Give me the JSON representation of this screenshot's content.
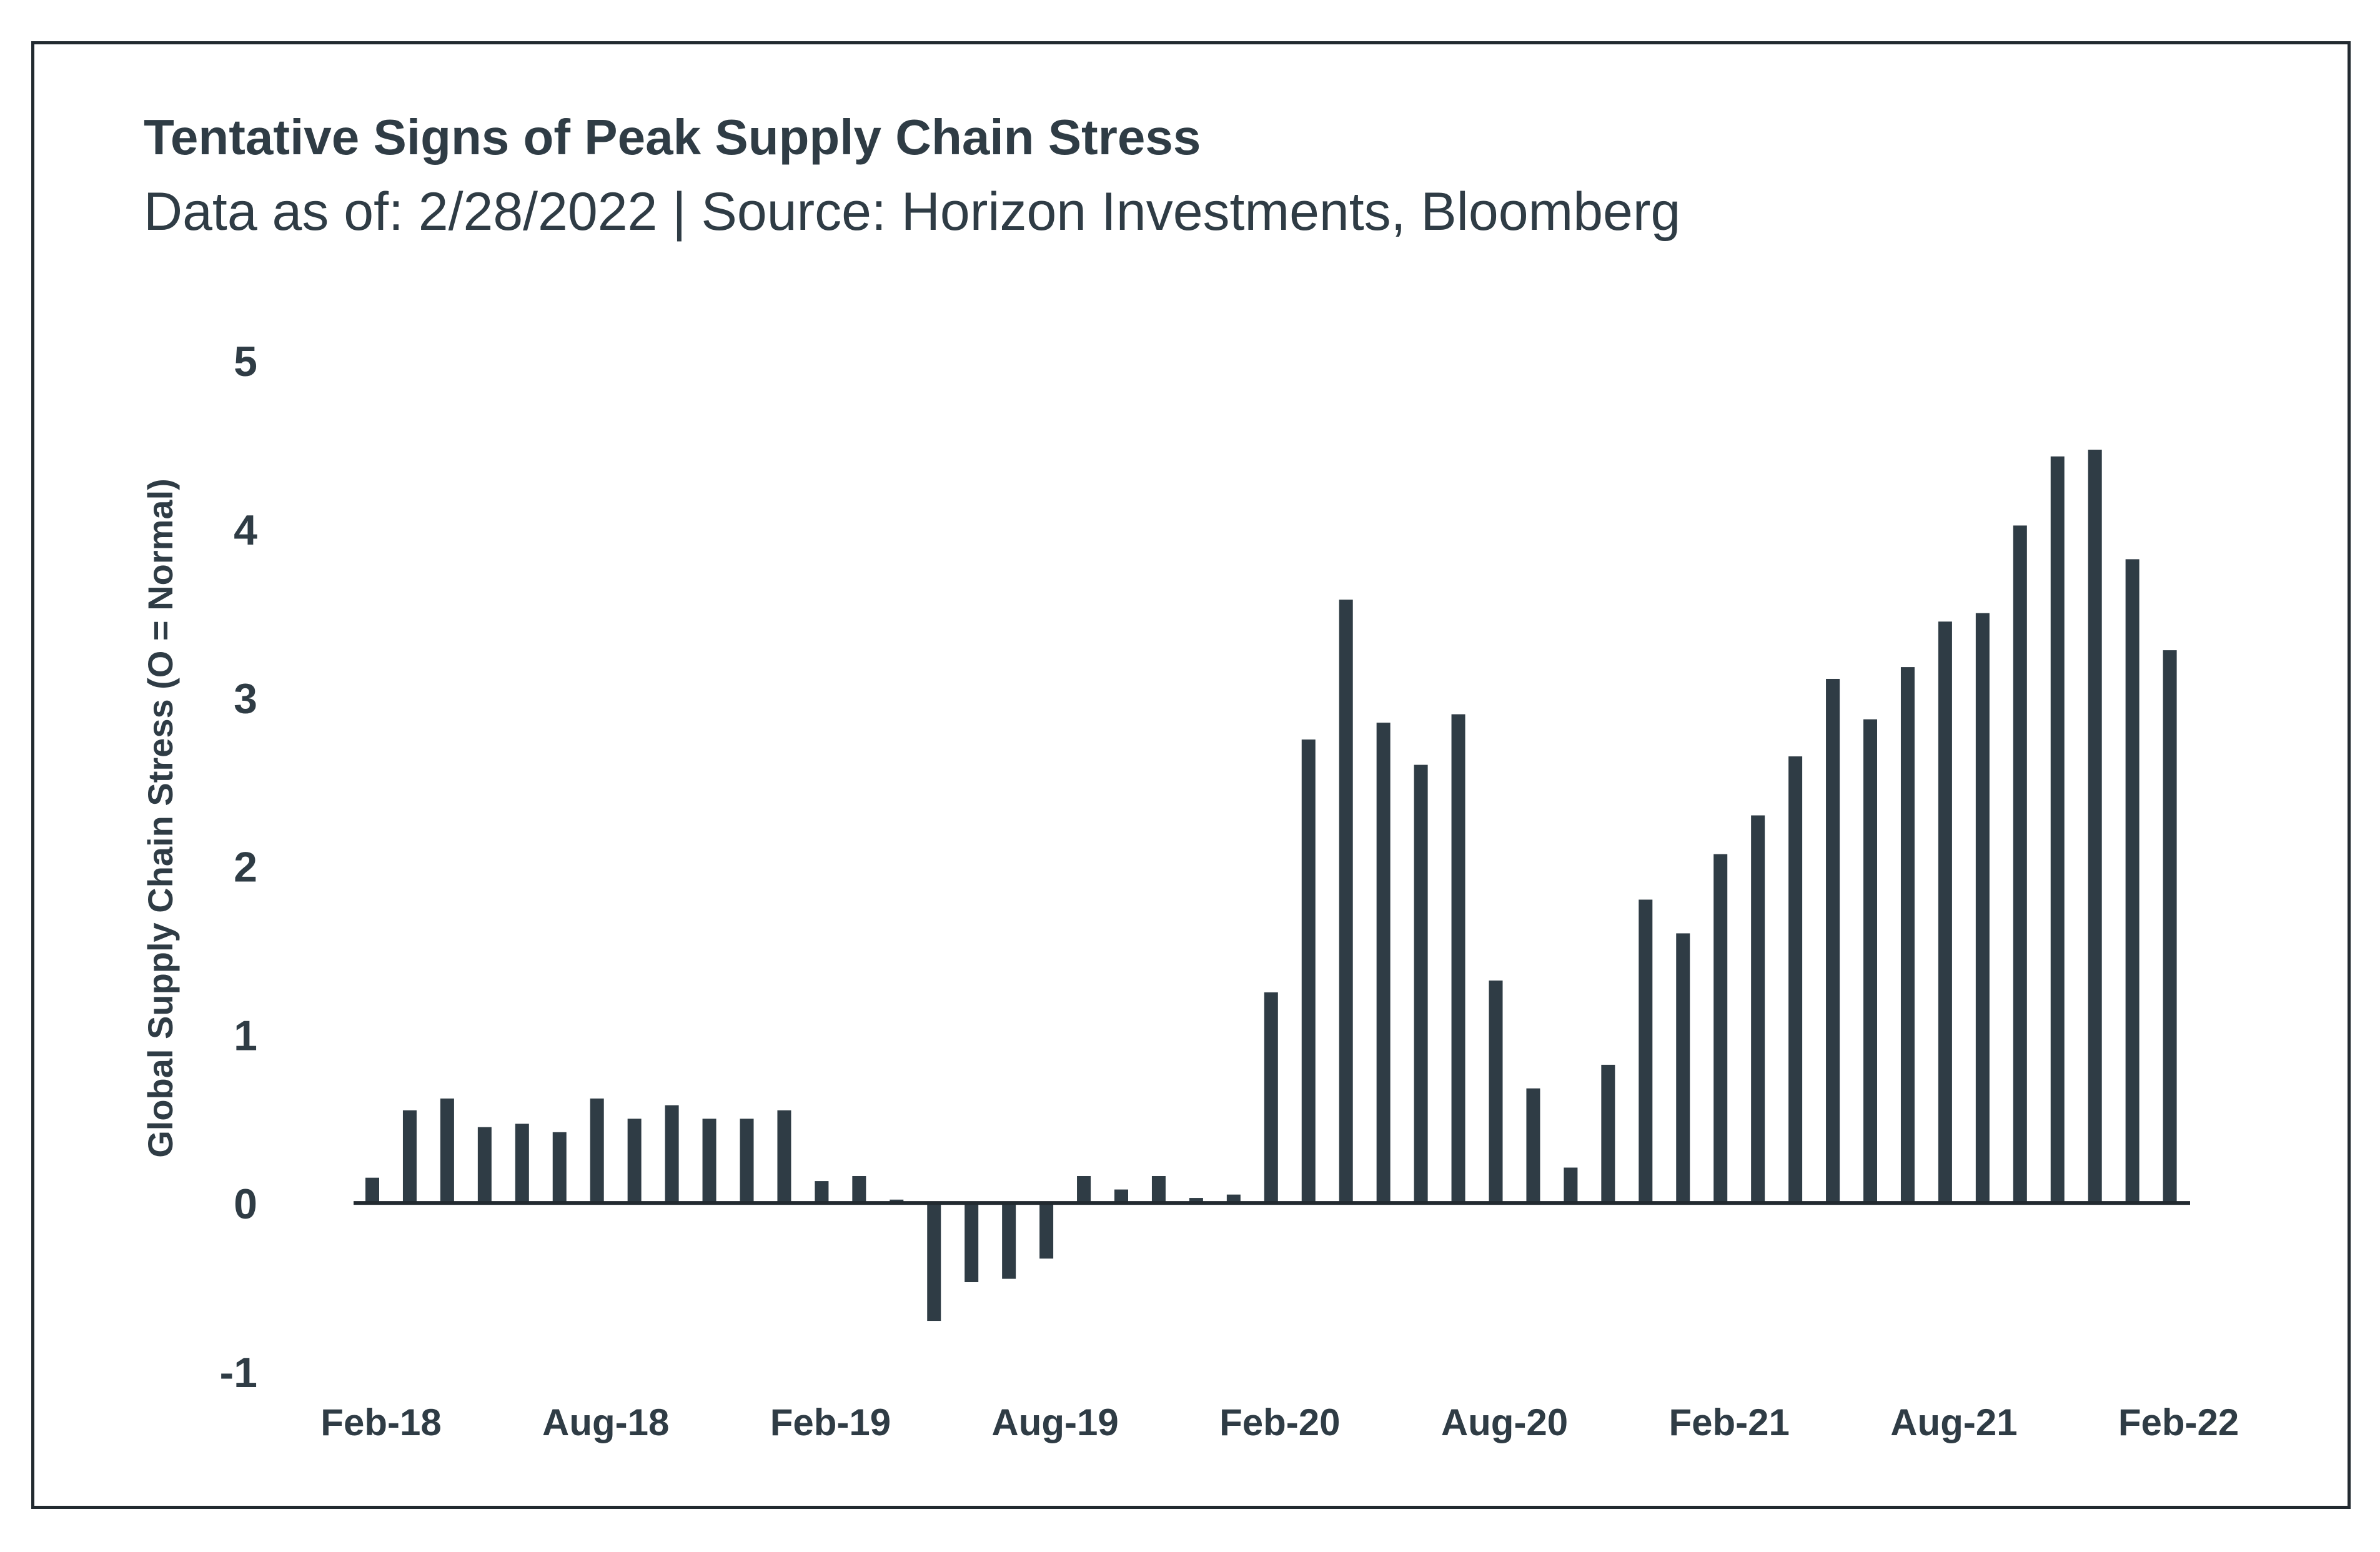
{
  "chart_data": {
    "type": "bar",
    "title": "Tentative Signs of Peak Supply Chain Stress",
    "subtitle": "Data as of: 2/28/2022 | Source: Horizon Investments, Bloomberg",
    "ylabel": "Global Supply Chain Stress (O = Normal)",
    "xlabel": "",
    "ylim": [
      -1,
      5
    ],
    "yticks": [
      "5",
      "4",
      "3",
      "2",
      "1",
      "0",
      "-1"
    ],
    "grid": false,
    "legend": "none",
    "bar_color": "#2f3c45",
    "categories": [
      "Feb-18",
      "Mar-18",
      "Apr-18",
      "May-18",
      "Jun-18",
      "Jul-18",
      "Aug-18",
      "Sep-18",
      "Oct-18",
      "Nov-18",
      "Dec-18",
      "Jan-19",
      "Feb-19",
      "Mar-19",
      "Apr-19",
      "May-19",
      "Jun-19",
      "Jul-19",
      "Aug-19",
      "Sep-19",
      "Oct-19",
      "Nov-19",
      "Dec-19",
      "Jan-20",
      "Feb-20",
      "Mar-20",
      "Apr-20",
      "May-20",
      "Jun-20",
      "Jul-20",
      "Aug-20",
      "Sep-20",
      "Oct-20",
      "Nov-20",
      "Dec-20",
      "Jan-21",
      "Feb-21",
      "Mar-21",
      "Apr-21",
      "May-21",
      "Jun-21",
      "Jul-21",
      "Aug-21",
      "Sep-21",
      "Oct-21",
      "Nov-21",
      "Dec-21",
      "Jan-22",
      "Feb-22"
    ],
    "values": [
      0.15,
      0.55,
      0.62,
      0.45,
      0.47,
      0.42,
      0.62,
      0.5,
      0.58,
      0.5,
      0.5,
      0.55,
      0.13,
      0.16,
      0.02,
      -0.7,
      -0.47,
      -0.45,
      -0.33,
      0.16,
      0.08,
      0.16,
      0.03,
      0.05,
      1.25,
      2.75,
      3.58,
      2.85,
      2.6,
      2.9,
      1.32,
      0.68,
      0.21,
      0.82,
      1.8,
      1.6,
      2.07,
      2.3,
      2.65,
      3.11,
      2.87,
      3.18,
      3.45,
      3.5,
      4.02,
      4.43,
      4.47,
      3.82,
      3.28
    ],
    "xtick_labels": [
      {
        "category": "Feb-18",
        "label": "Feb-18"
      },
      {
        "category": "Aug-18",
        "label": "Aug-18"
      },
      {
        "category": "Feb-19",
        "label": "Feb-19"
      },
      {
        "category": "Aug-19",
        "label": "Aug-19"
      },
      {
        "category": "Feb-20",
        "label": "Feb-20"
      },
      {
        "category": "Aug-20",
        "label": "Aug-20"
      },
      {
        "category": "Feb-21",
        "label": "Feb-21"
      },
      {
        "category": "Aug-21",
        "label": "Aug-21"
      },
      {
        "category": "Feb-22",
        "label": "Feb-22"
      }
    ]
  }
}
